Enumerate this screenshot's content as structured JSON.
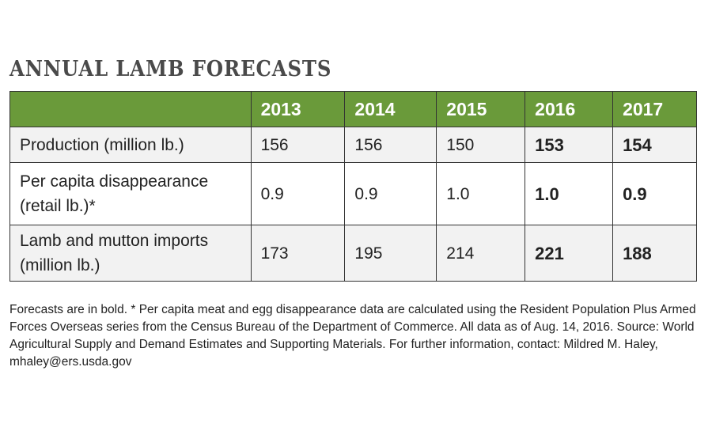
{
  "header": {
    "title": "ANNUAL LAMB FORECASTS"
  },
  "table": {
    "columns": [
      "",
      "2013",
      "2014",
      "2015",
      "2016",
      "2017"
    ],
    "rows": [
      [
        "Production (million lb.)",
        "156",
        "156",
        "150",
        "153",
        "154"
      ],
      [
        "Per capita disappearance (retail lb.)*",
        "0.9",
        "0.9",
        "1.0",
        "1.0",
        "0.9"
      ],
      [
        "Lamb and mutton imports (million lb.)",
        "173",
        "195",
        "214",
        "221",
        "188"
      ]
    ]
  },
  "footnote": "Forecasts are in bold. * Per capita meat and egg disappearance data are calculated using the Resident Population Plus Armed Forces Overseas series from the Census Bureau of the Department of Commerce. All data as of Aug. 14, 2016. Source: World Agricultural Supply and Demand Estimates and Supporting Materials. For further information, contact: Mildred M. Haley, mhaley@ers.usda.gov"
}
